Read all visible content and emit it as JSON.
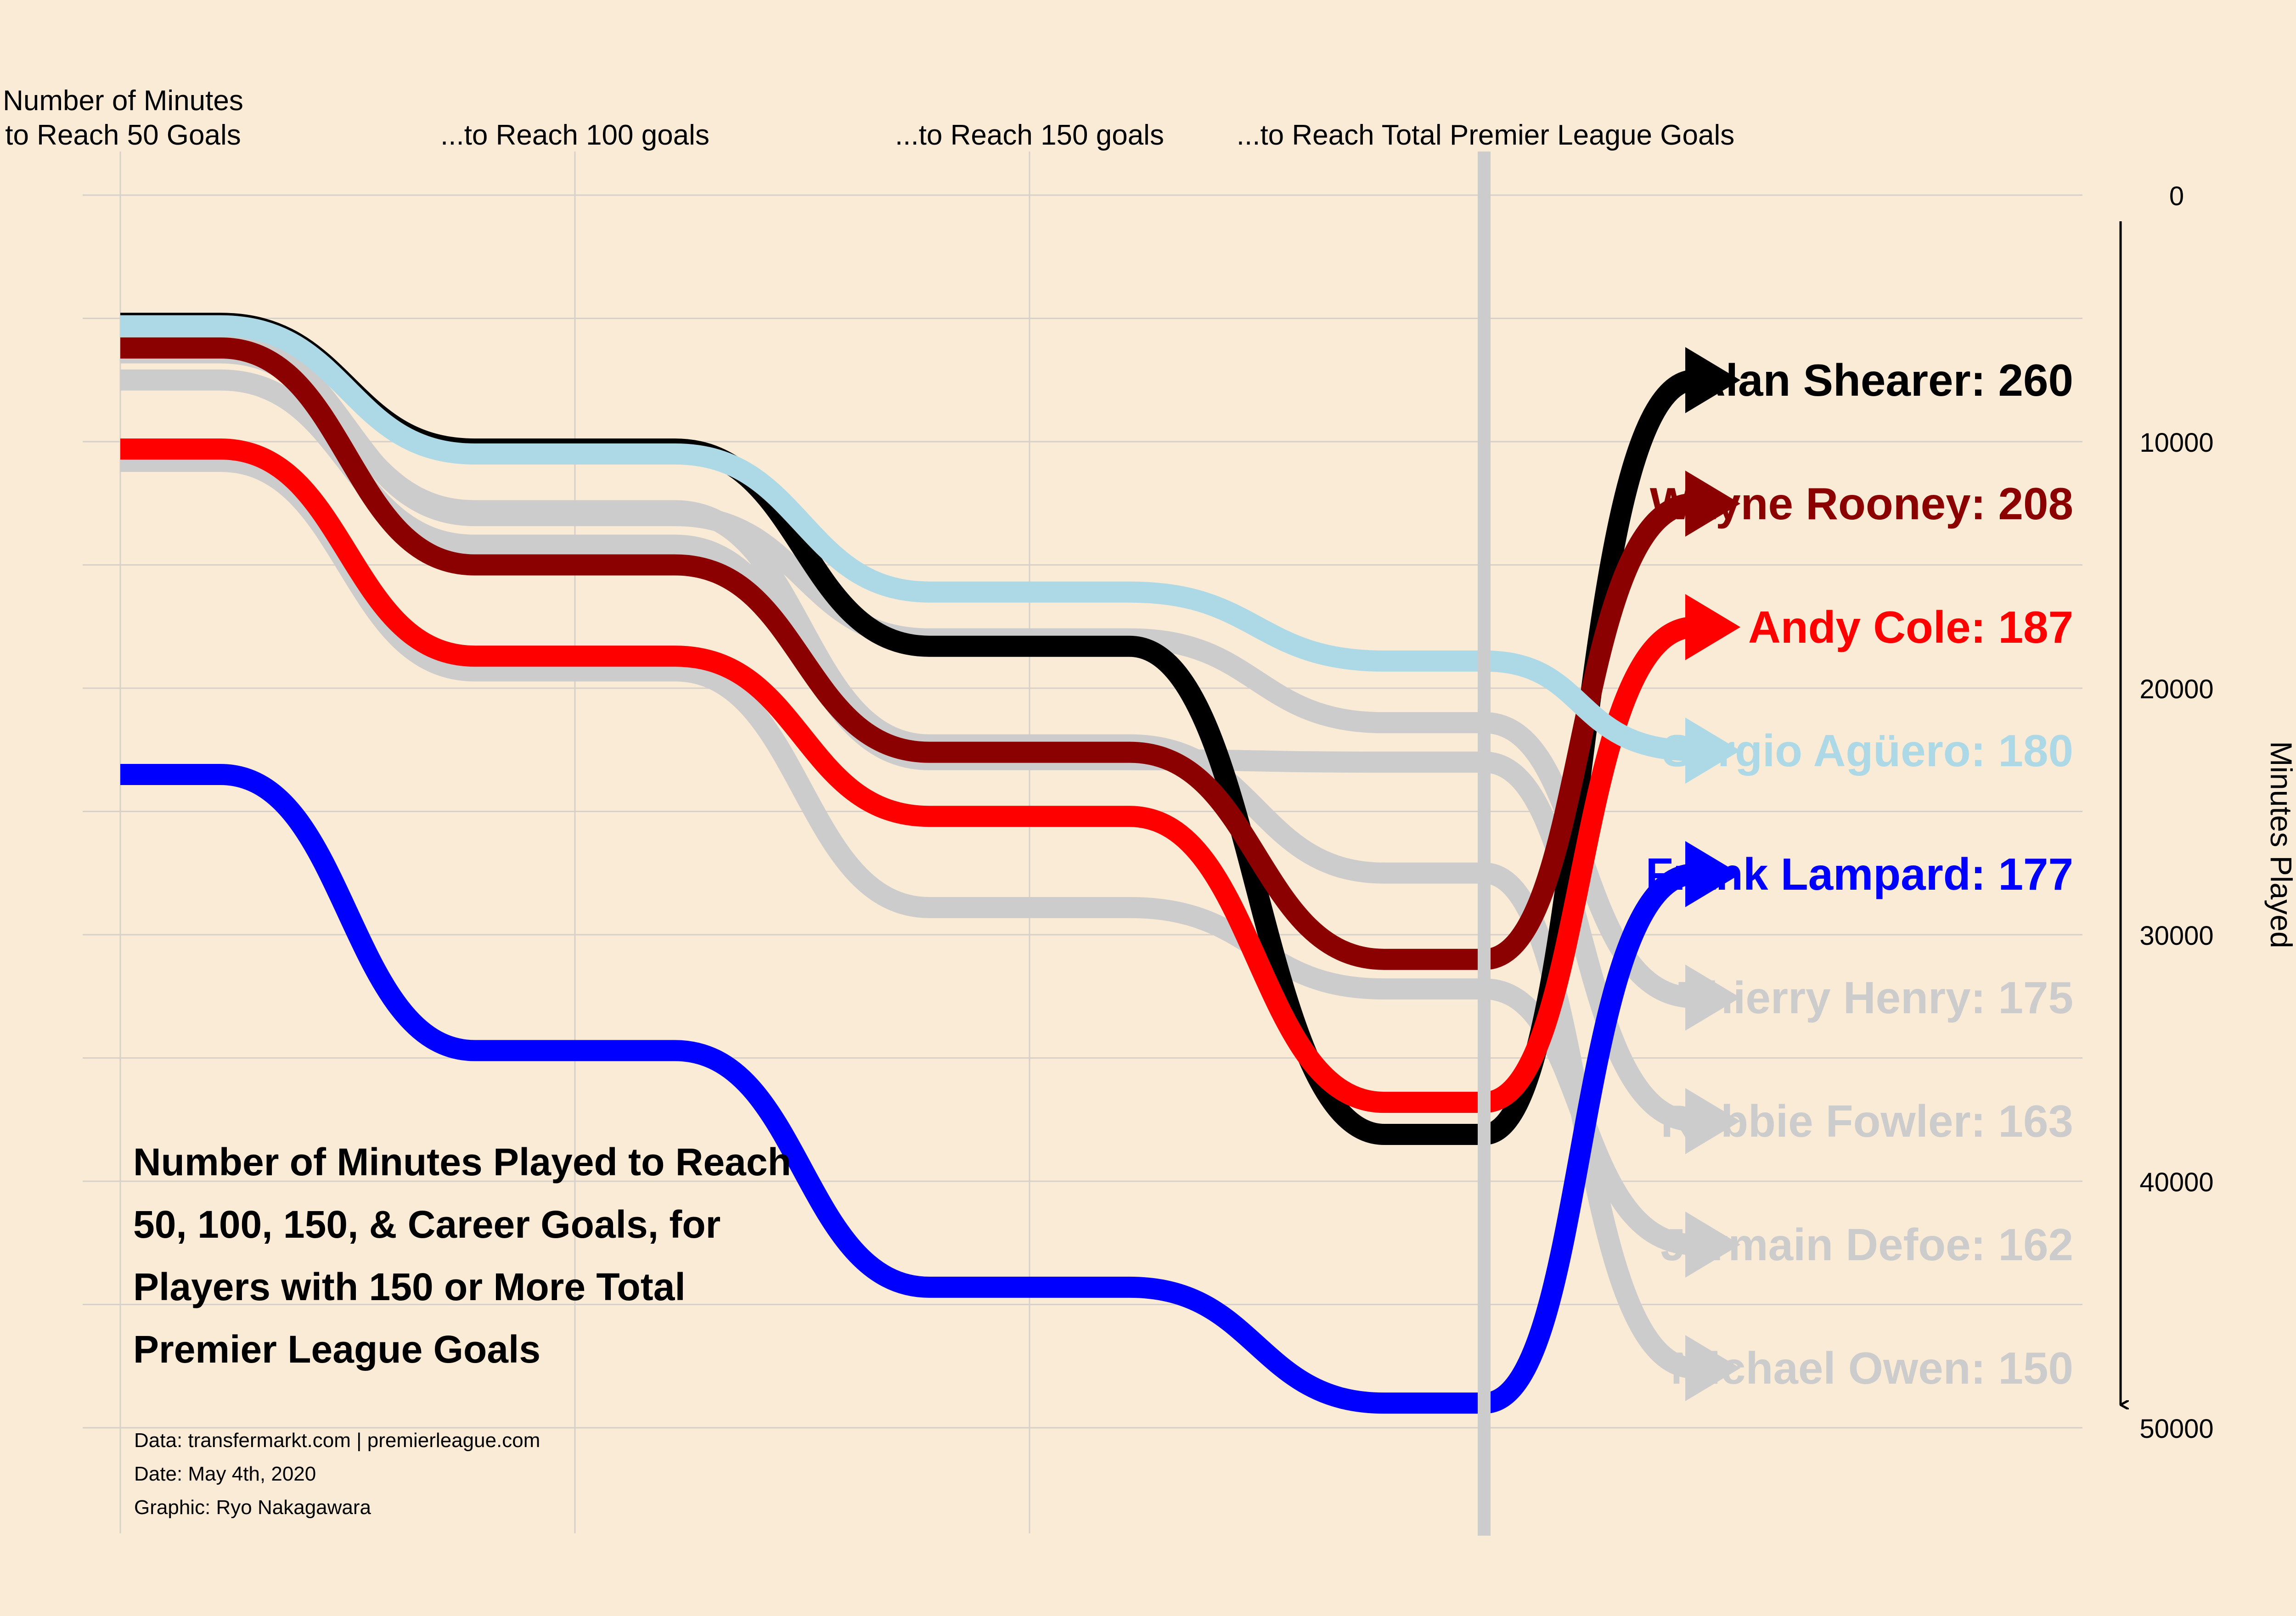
{
  "title_lines": [
    "Number of Minutes Played to Reach",
    "50, 100, 150, & Career Goals, for",
    "Players with 150 or More Total",
    "Premier League Goals"
  ],
  "caption": {
    "data": "Data: transfermarkt.com | premierleague.com",
    "date": "Date: May 4th, 2020",
    "graphic": "Graphic: Ryo Nakagawara"
  },
  "chart_data": {
    "type": "line",
    "categories": [
      "Number of Minutes to Reach 50 Goals",
      "...to Reach 100 goals",
      "...to Reach 150 goals",
      "...to Reach Total Premier League Goals"
    ],
    "category_label_lines": [
      [
        "Number of Minutes",
        "to Reach 50 Goals"
      ],
      [
        "...to Reach 100 goals"
      ],
      [
        "...to Reach 150 goals"
      ],
      [
        "...to Reach Total Premier League Goals"
      ]
    ],
    "ylabel": "Minutes Played",
    "ylim": [
      0,
      50000
    ],
    "y_reversed": true,
    "yticks": [
      0,
      10000,
      20000,
      30000,
      40000,
      50000
    ],
    "grid": true,
    "series": [
      {
        "name": "Alan Shearer",
        "total_goals": 260,
        "label": "Alan Shearer: 260",
        "color": "#000000",
        "values": [
          5200,
          10300,
          18300,
          38100
        ]
      },
      {
        "name": "Wayne Rooney",
        "total_goals": 208,
        "label": "Wayne Rooney: 208",
        "color": "#8B0000",
        "values": [
          6200,
          15000,
          22600,
          31000
        ]
      },
      {
        "name": "Andy Cole",
        "total_goals": 187,
        "label": "Andy Cole: 187",
        "color": "#FF0000",
        "values": [
          10300,
          18700,
          25200,
          36800
        ]
      },
      {
        "name": "Sergio Agüero",
        "total_goals": 180,
        "label": "Sergio Agüero: 180",
        "color": "#ADD8E6",
        "values": [
          5300,
          10500,
          16100,
          18900
        ]
      },
      {
        "name": "Frank Lampard",
        "total_goals": 177,
        "label": "Frank Lampard: 177",
        "color": "#0000FF",
        "values": [
          23500,
          34700,
          44300,
          49000
        ]
      },
      {
        "name": "Thierry Henry",
        "total_goals": 175,
        "label": "Thierry Henry: 175",
        "color": "#CCCCCC",
        "values": [
          5900,
          13000,
          18000,
          21400
        ]
      },
      {
        "name": "Robbie Fowler",
        "total_goals": 163,
        "label": "Robbie Fowler: 163",
        "color": "#CCCCCC",
        "values": [
          7500,
          14200,
          22900,
          23000
        ]
      },
      {
        "name": "Jermain Defoe",
        "total_goals": 162,
        "label": "Jermain Defoe: 162",
        "color": "#CCCCCC",
        "values": [
          10800,
          19300,
          28900,
          32200
        ]
      },
      {
        "name": "Michael Owen",
        "total_goals": 150,
        "label": "Michael Owen: 150",
        "color": "#CCCCCC",
        "values": [
          6400,
          12800,
          22300,
          27500
        ]
      }
    ],
    "label_order": [
      "Alan Shearer",
      "Wayne Rooney",
      "Andy Cole",
      "Sergio Agüero",
      "Frank Lampard",
      "Thierry Henry",
      "Robbie Fowler",
      "Jermain Defoe",
      "Michael Owen"
    ],
    "highlight_stage_line_color": "#CCCCCC"
  }
}
